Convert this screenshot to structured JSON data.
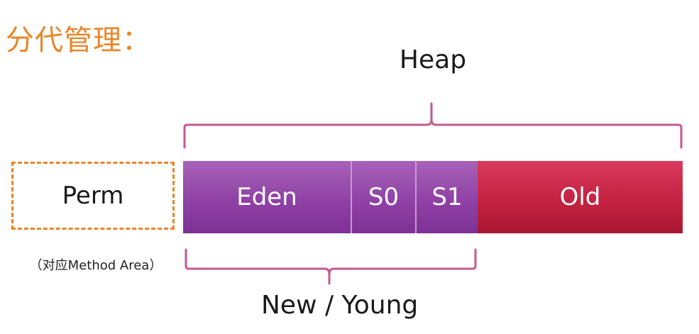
{
  "title": "分代管理：",
  "heap": {
    "label": "Heap"
  },
  "perm": {
    "label": "Perm",
    "note": "（对应Method Area）"
  },
  "segments": {
    "eden": "Eden",
    "s0": "S0",
    "s1": "S1",
    "old": "Old"
  },
  "young": {
    "label": "New / Young"
  },
  "colors": {
    "title_orange": "#e8862a",
    "young_purple": "#8d3fa3",
    "old_red": "#c2213f",
    "brace_pink": "#c35a8f"
  }
}
